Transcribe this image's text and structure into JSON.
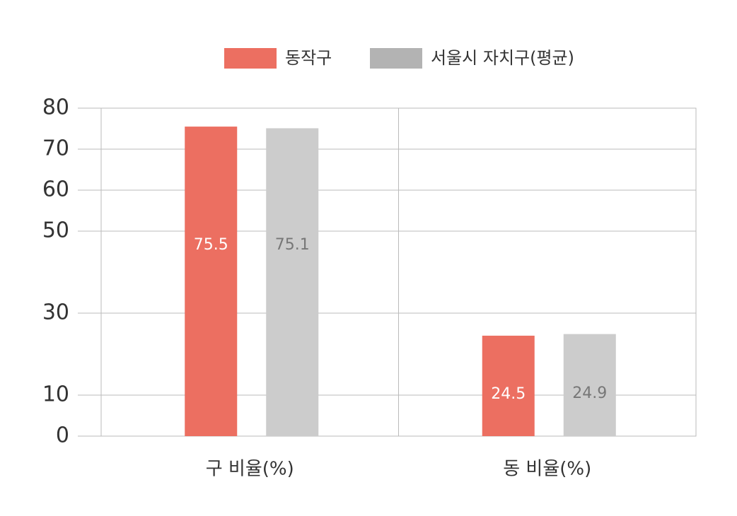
{
  "chart_data": {
    "type": "bar",
    "categories": [
      "구 비율(%)",
      "동 비율(%)"
    ],
    "series": [
      {
        "name": "동작구",
        "color": "#ec6f61",
        "values": [
          75.5,
          24.5
        ]
      },
      {
        "name": "서울시 자치구(평균)",
        "color": "#cccccc",
        "values": [
          75.1,
          24.9
        ]
      }
    ],
    "ylim": [
      0,
      80
    ],
    "yticks": [
      0,
      10,
      30,
      50,
      60,
      70,
      80
    ],
    "grid": true,
    "legend": "top"
  }
}
